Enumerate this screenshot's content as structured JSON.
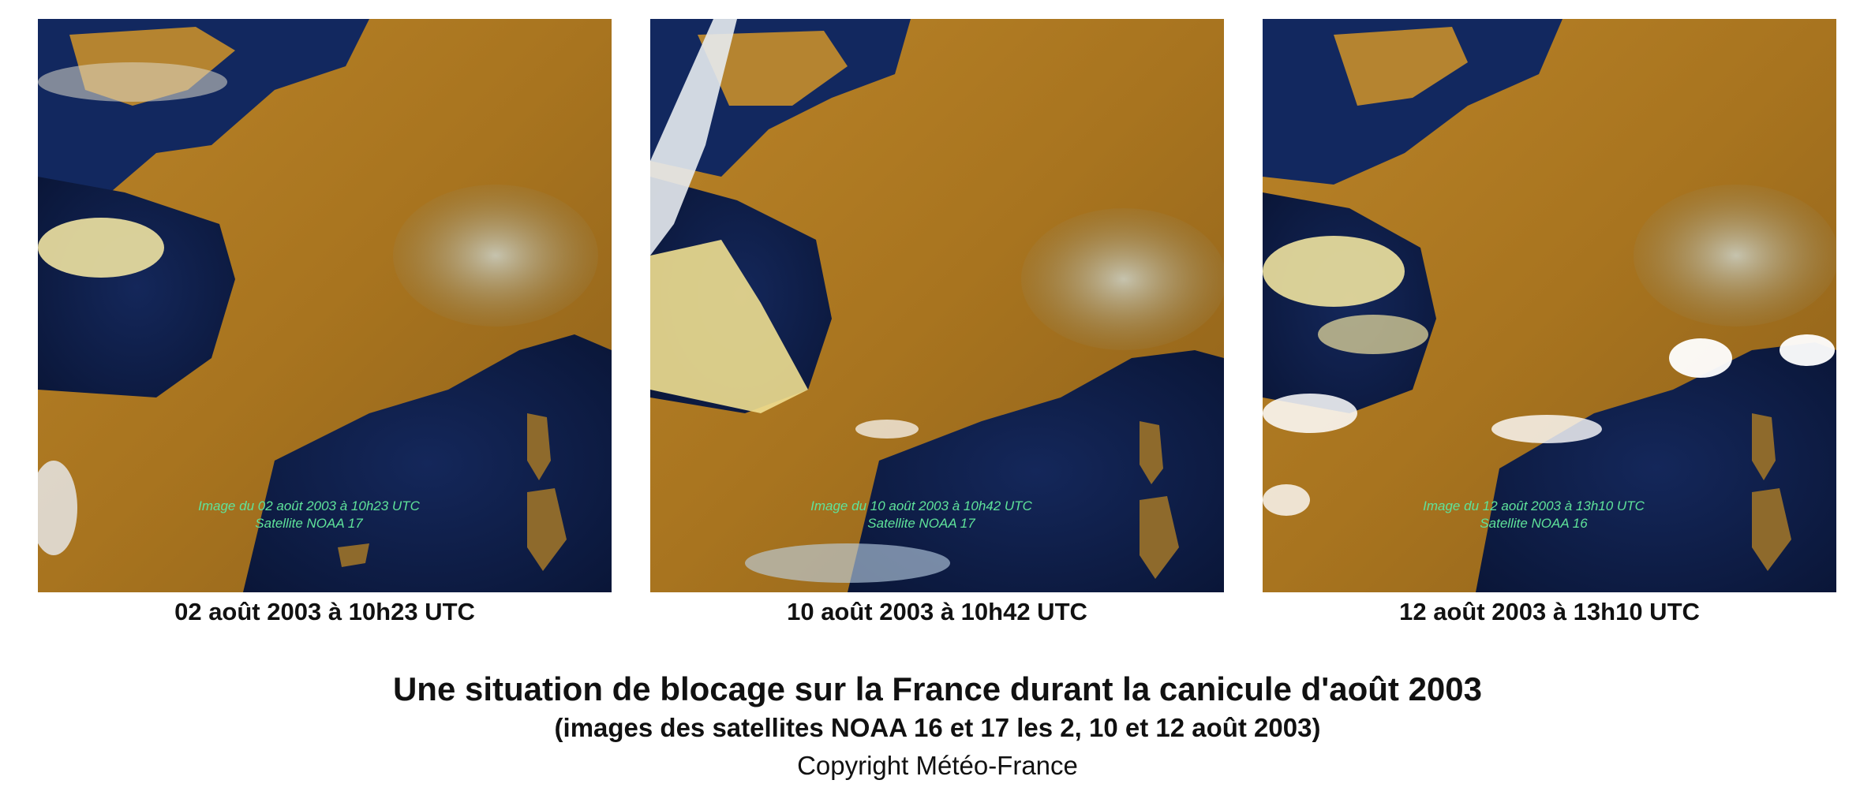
{
  "panels": [
    {
      "overlay_line1": "Image du 02 août 2003 à 10h23 UTC",
      "overlay_line2": "Satellite NOAA 17",
      "caption": "02 août 2003 à 10h23 UTC"
    },
    {
      "overlay_line1": "Image du 10 août 2003 à 10h42 UTC",
      "overlay_line2": "Satellite NOAA 17",
      "caption": "10 août 2003 à 10h42 UTC"
    },
    {
      "overlay_line1": "Image du 12 août 2003 à 13h10 UTC",
      "overlay_line2": "Satellite NOAA 16",
      "caption": "12 août 2003 à 13h10 UTC"
    }
  ],
  "title": "Une situation de blocage sur la France durant la canicule d'août 2003",
  "subtitle": "(images des satellites NOAA 16 et 17 les 2, 10 et 12 août 2003)",
  "copyright": "Copyright Météo-France",
  "colors": {
    "land": "#b07a22",
    "sea": "#0d1f4a",
    "cloud": "#f1e7b0",
    "overlay_text": "#5fe39a"
  }
}
